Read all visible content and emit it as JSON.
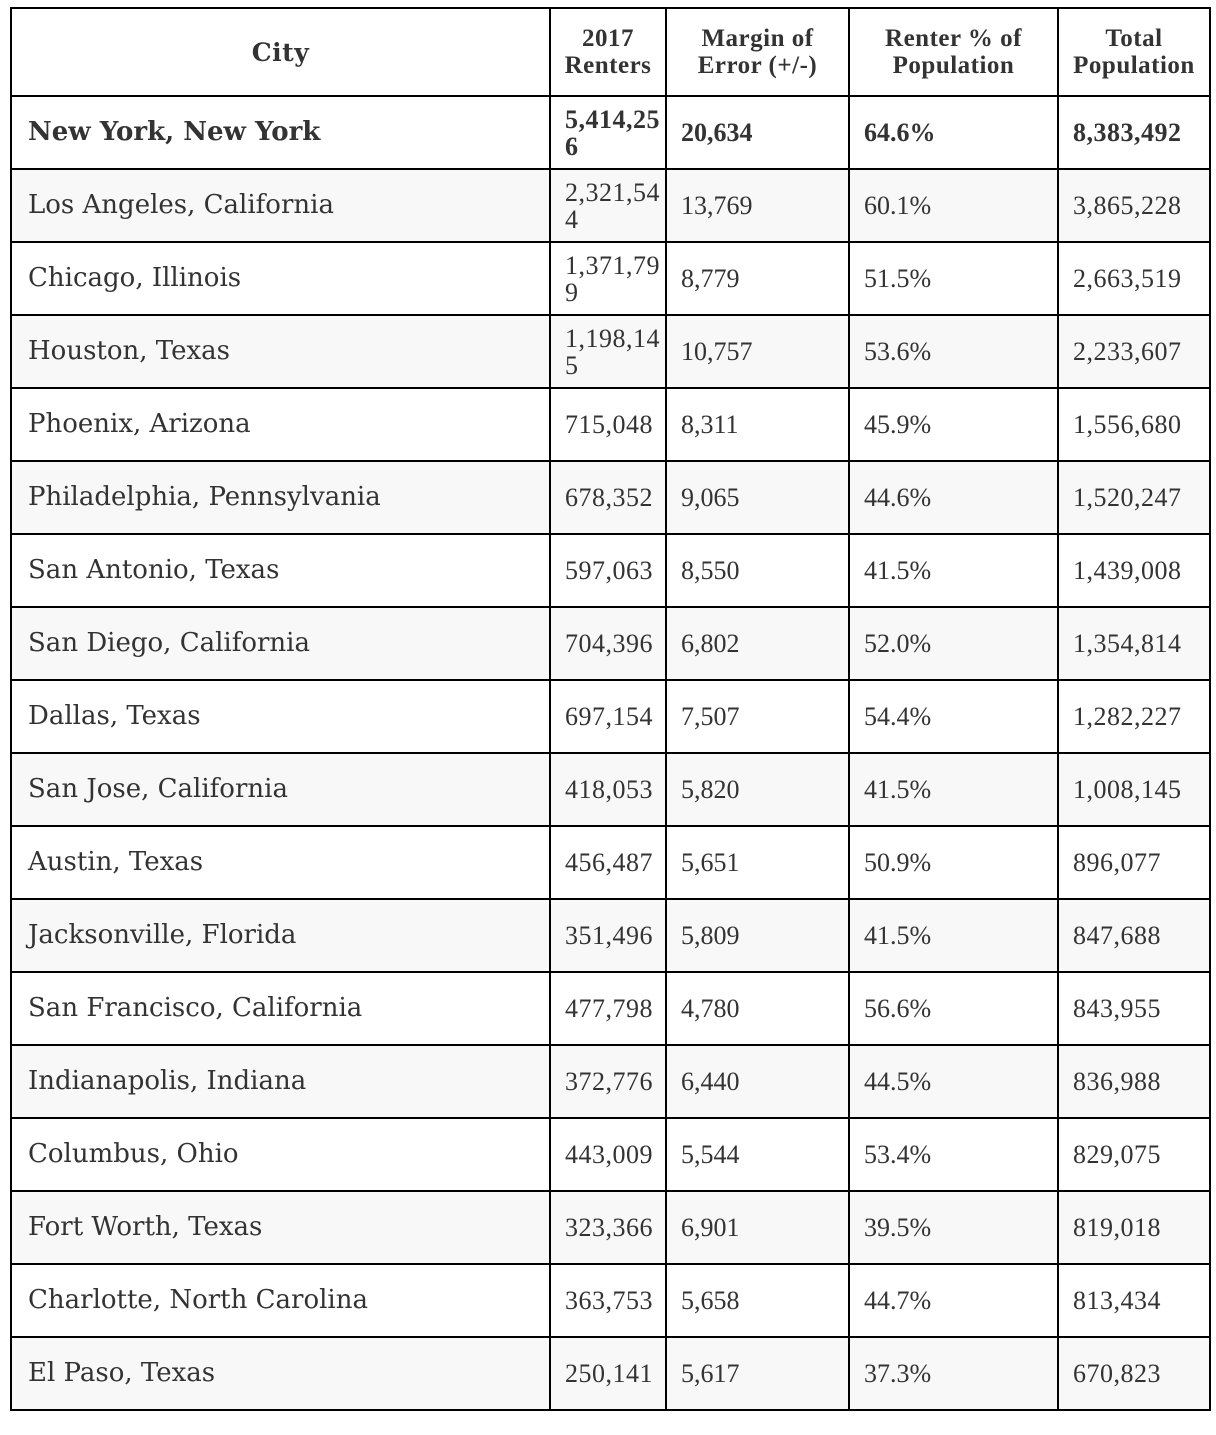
{
  "table": {
    "headers": {
      "city": "City",
      "renters": "2017 Renters",
      "margin_of_error": "Margin of Error (+/-)",
      "renter_pct": "Renter % of Population",
      "total_population": "Total Population"
    },
    "rows": [
      {
        "city": "New York, New York",
        "renters": "5,414,256",
        "moe": "20,634",
        "pct": "64.6%",
        "total": "8,383,492",
        "bold": true
      },
      {
        "city": "Los Angeles, California",
        "renters": "2,321,544",
        "moe": "13,769",
        "pct": "60.1%",
        "total": "3,865,228"
      },
      {
        "city": "Chicago, Illinois",
        "renters": "1,371,799",
        "moe": "8,779",
        "pct": "51.5%",
        "total": "2,663,519"
      },
      {
        "city": "Houston, Texas",
        "renters": "1,198,145",
        "moe": "10,757",
        "pct": "53.6%",
        "total": "2,233,607"
      },
      {
        "city": "Phoenix, Arizona",
        "renters": "715,048",
        "moe": "8,311",
        "pct": "45.9%",
        "total": "1,556,680"
      },
      {
        "city": "Philadelphia, Pennsylvania",
        "renters": "678,352",
        "moe": "9,065",
        "pct": "44.6%",
        "total": "1,520,247"
      },
      {
        "city": "San Antonio, Texas",
        "renters": "597,063",
        "moe": "8,550",
        "pct": "41.5%",
        "total": "1,439,008"
      },
      {
        "city": "San Diego, California",
        "renters": "704,396",
        "moe": "6,802",
        "pct": "52.0%",
        "total": "1,354,814"
      },
      {
        "city": "Dallas, Texas",
        "renters": "697,154",
        "moe": "7,507",
        "pct": "54.4%",
        "total": "1,282,227"
      },
      {
        "city": "San Jose, California",
        "renters": "418,053",
        "moe": "5,820",
        "pct": "41.5%",
        "total": "1,008,145"
      },
      {
        "city": "Austin, Texas",
        "renters": "456,487",
        "moe": "5,651",
        "pct": "50.9%",
        "total": "896,077"
      },
      {
        "city": "Jacksonville, Florida",
        "renters": "351,496",
        "moe": "5,809",
        "pct": "41.5%",
        "total": "847,688"
      },
      {
        "city": "San Francisco, California",
        "renters": "477,798",
        "moe": "4,780",
        "pct": "56.6%",
        "total": "843,955"
      },
      {
        "city": "Indianapolis, Indiana",
        "renters": "372,776",
        "moe": "6,440",
        "pct": "44.5%",
        "total": "836,988"
      },
      {
        "city": "Columbus, Ohio",
        "renters": "443,009",
        "moe": "5,544",
        "pct": "53.4%",
        "total": "829,075"
      },
      {
        "city": "Fort Worth, Texas",
        "renters": "323,366",
        "moe": "6,901",
        "pct": "39.5%",
        "total": "819,018"
      },
      {
        "city": "Charlotte, North Carolina",
        "renters": "363,753",
        "moe": "5,658",
        "pct": "44.7%",
        "total": "813,434"
      },
      {
        "city": "El Paso, Texas",
        "renters": "250,141",
        "moe": "5,617",
        "pct": "37.3%",
        "total": "670,823"
      }
    ]
  }
}
